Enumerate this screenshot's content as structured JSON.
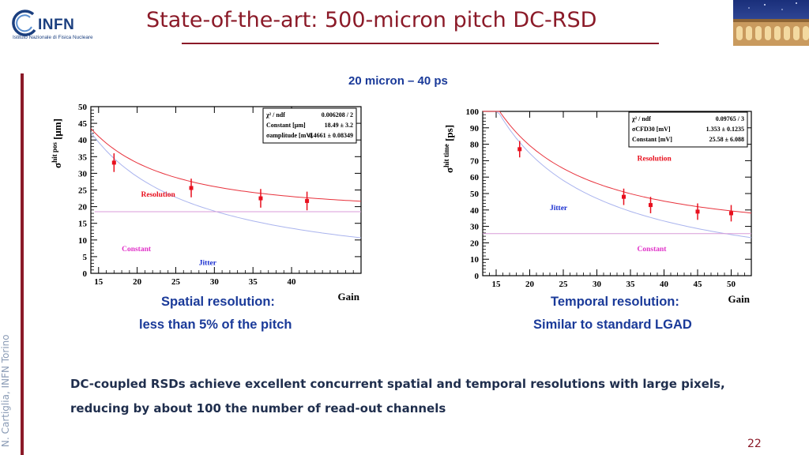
{
  "header": {
    "logo_word": "INFN",
    "logo_subtitle": "Istituto Nazionale di Fisica Nucleare",
    "title": "State-of-the-art: 500-micron pitch DC-RSD"
  },
  "sidebar": {
    "author": "N. Cartiglia, INFN Torino"
  },
  "subtitle": "20 micron – 40 ps",
  "captions": {
    "left_line1": "Spatial resolution:",
    "left_line2": "less than 5% of the pitch",
    "right_line1": "Temporal resolution:",
    "right_line2": "Similar to standard LGAD"
  },
  "summary": "DC-coupled RSDs achieve excellent concurrent spatial and temporal resolutions with large pixels, reducing by about 100 the number of read-out channels",
  "page_number": "22",
  "colors": {
    "accent": "#8b1a28",
    "caption_blue": "#1a3a99",
    "fit_red": "#e8323c",
    "constant_line": "#d89bd8",
    "jitter_line": "#aab4ee",
    "point_red": "#e8101e"
  },
  "chart_data": [
    {
      "type": "scatter",
      "title": "",
      "xlabel": "Gain",
      "ylabel": "σhit pos [μm]",
      "ylabel_main": "σ",
      "ylabel_sup": "hit pos",
      "ylabel_unit": "[μm]",
      "xlim": [
        14,
        49
      ],
      "ylim": [
        0,
        50
      ],
      "xticks": [
        15,
        20,
        25,
        30,
        35,
        40
      ],
      "yticks": [
        0,
        5,
        10,
        15,
        20,
        25,
        30,
        35,
        40,
        45,
        50
      ],
      "points": [
        {
          "x": 17,
          "y": 33.2,
          "err": 2.8
        },
        {
          "x": 27,
          "y": 25.6,
          "err": 2.8
        },
        {
          "x": 36,
          "y": 22.5,
          "err": 2.8
        },
        {
          "x": 42,
          "y": 21.7,
          "err": 2.8
        }
      ],
      "fit": {
        "sigma_const": 18.49,
        "a": 0.4661
      },
      "series_labels": {
        "resolution": "Resolution",
        "constant": "Constant",
        "jitter": "Jitter"
      },
      "stats": [
        {
          "label": "χ² / ndf",
          "value": "0.006208 / 2"
        },
        {
          "label": "Constant [μm]",
          "value": "18.49 ±   3.2"
        },
        {
          "label": "σamplitude [mV]",
          "value": "0.4661 ± 0.08349"
        }
      ]
    },
    {
      "type": "scatter",
      "title": "",
      "xlabel": "Gain",
      "ylabel": "σhit time [ps]",
      "ylabel_main": "σ",
      "ylabel_sup": "hit time",
      "ylabel_unit": "[ps]",
      "xlim": [
        13,
        53
      ],
      "ylim": [
        0,
        100
      ],
      "xticks": [
        15,
        20,
        25,
        30,
        35,
        40,
        45,
        50
      ],
      "yticks": [
        0,
        10,
        20,
        30,
        40,
        50,
        60,
        70,
        80,
        90,
        100
      ],
      "points": [
        {
          "x": 18.5,
          "y": 77,
          "err": 5
        },
        {
          "x": 34,
          "y": 48,
          "err": 5
        },
        {
          "x": 38,
          "y": 43,
          "err": 5
        },
        {
          "x": 45,
          "y": 39,
          "err": 5
        },
        {
          "x": 50,
          "y": 38,
          "err": 5
        }
      ],
      "fit": {
        "sigma_const": 25.58,
        "a": 1.353
      },
      "series_labels": {
        "resolution": "Resolution",
        "constant": "Constant",
        "jitter": "Jitter"
      },
      "stats": [
        {
          "label": "χ² / ndf",
          "value": "0.09765 / 3"
        },
        {
          "label": "σCFD30 [mV]",
          "value": "1.353 ± 0.1235"
        },
        {
          "label": "Constant [mV]",
          "value": "25.58 ± 6.088"
        }
      ]
    }
  ]
}
